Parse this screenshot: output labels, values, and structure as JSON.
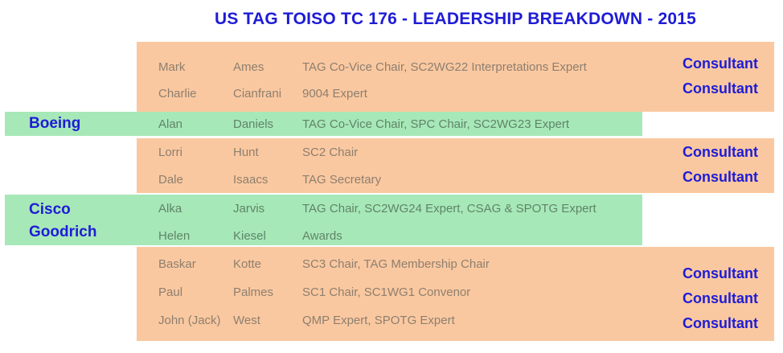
{
  "title": "US TAG TOISO TC 176 - LEADERSHIP BREAKDOWN - 2015",
  "colors": {
    "orange_band": "#FAC8A0",
    "green_band": "#A7E8B8",
    "blue_text": "#1E1CD6",
    "orange_row_text": "#8D7F6F",
    "green_row_text": "#5F8467"
  },
  "bands": [
    {
      "type": "orange",
      "rows": [
        {
          "first": "Mark",
          "last": "Ames",
          "role": "TAG Co-Vice Chair, SC2WG22 Interpretations Expert"
        },
        {
          "first": "Charlie",
          "last": "Cianfrani",
          "role": "9004 Expert"
        }
      ],
      "consultants": [
        "Consultant",
        "Consultant"
      ]
    },
    {
      "type": "green",
      "companies": [
        "Boeing"
      ],
      "rows": [
        {
          "first": "Alan",
          "last": "Daniels",
          "role": "TAG Co-Vice Chair, SPC Chair, SC2WG23 Expert"
        }
      ]
    },
    {
      "type": "orange",
      "rows": [
        {
          "first": "Lorri",
          "last": "Hunt",
          "role": "SC2 Chair"
        },
        {
          "first": "Dale",
          "last": "Isaacs",
          "role": "TAG Secretary"
        }
      ],
      "consultants": [
        "Consultant",
        "Consultant"
      ]
    },
    {
      "type": "green",
      "companies": [
        "Cisco",
        "Goodrich"
      ],
      "rows": [
        {
          "first": "Alka",
          "last": "Jarvis",
          "role": "TAG Chair, SC2WG24 Expert, CSAG & SPOTG Expert"
        },
        {
          "first": "Helen",
          "last": "Kiesel",
          "role": "Awards"
        }
      ]
    },
    {
      "type": "orange",
      "rows": [
        {
          "first": "Baskar",
          "last": "Kotte",
          "role": "SC3 Chair, TAG Membership Chair"
        },
        {
          "first": "Paul",
          "last": "Palmes",
          "role": "SC1 Chair, SC1WG1 Convenor"
        },
        {
          "first": "John (Jack)",
          "last": "West",
          "role": "QMP Expert, SPOTG Expert"
        }
      ],
      "consultants": [
        "Consultant",
        "Consultant",
        "Consultant"
      ]
    }
  ]
}
